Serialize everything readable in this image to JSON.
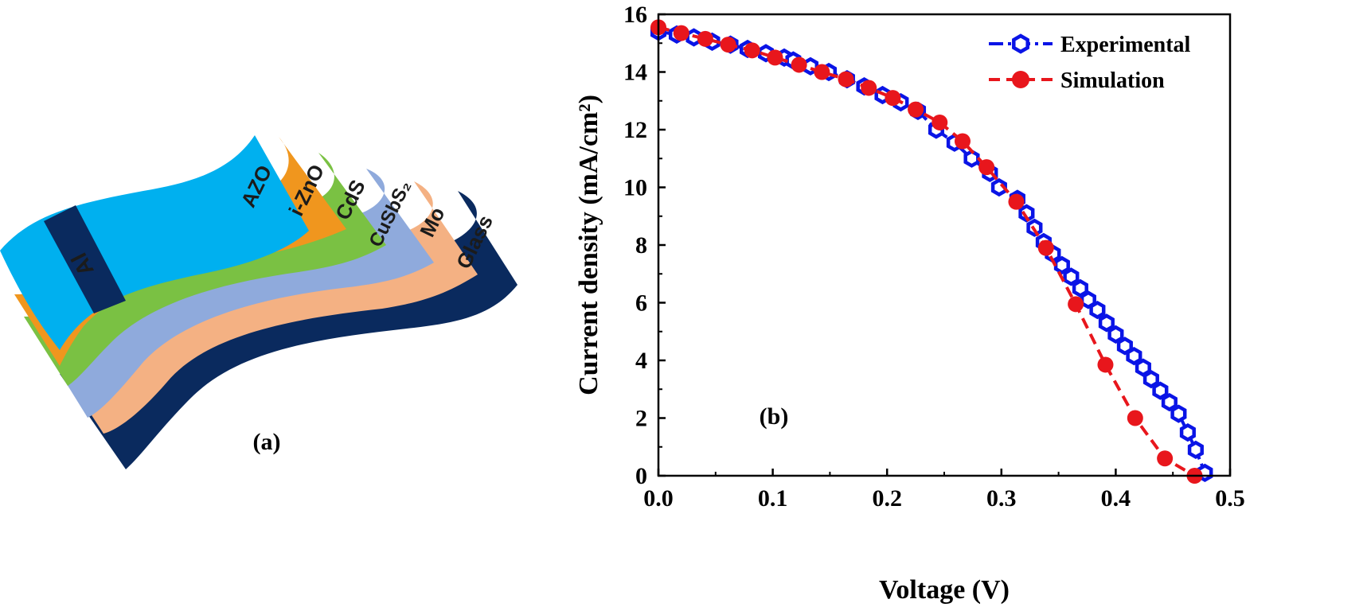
{
  "panel_a": {
    "label": "(a)",
    "layers": [
      {
        "name": "Glass",
        "color": "#0a2a5e",
        "text_color": "#ffffff"
      },
      {
        "name": "Mo",
        "color": "#f4b183",
        "text_color": "#1b1b1b"
      },
      {
        "name": "CuSbS₂",
        "color": "#8faadc",
        "text_color": "#1b1b1b"
      },
      {
        "name": "CdS",
        "color": "#7ac143",
        "text_color": "#1b1b1b"
      },
      {
        "name": "i-ZnO",
        "color": "#f0961e",
        "text_color": "#1b1b1b"
      },
      {
        "name": "AZO",
        "color": "#00b0ef",
        "text_color": "#1b1b1b"
      }
    ],
    "contact": {
      "name": "Al",
      "color": "#0a2a5e",
      "text_color": "#ffffff"
    }
  },
  "chart_data": {
    "type": "line",
    "panel_label": "(b)",
    "xlabel": "Voltage (V)",
    "ylabel": "Current density (mA/cm²)",
    "xlim": [
      0,
      0.5
    ],
    "ylim": [
      0,
      16
    ],
    "x_ticks": [
      "0.0",
      "0.1",
      "0.2",
      "0.3",
      "0.4",
      "0.5"
    ],
    "y_ticks": [
      "0",
      "2",
      "4",
      "6",
      "8",
      "10",
      "12",
      "14",
      "16"
    ],
    "legend_position": "top-right",
    "grid": false,
    "series": [
      {
        "name": "Experimental",
        "color": "#0a14e6",
        "marker": "hollow-hexagon",
        "line": "dash-dot",
        "x": [
          0.0,
          0.016,
          0.031,
          0.047,
          0.063,
          0.078,
          0.094,
          0.11,
          0.118,
          0.133,
          0.149,
          0.165,
          0.18,
          0.196,
          0.212,
          0.227,
          0.243,
          0.259,
          0.274,
          0.29,
          0.298,
          0.314,
          0.322,
          0.329,
          0.337,
          0.345,
          0.353,
          0.361,
          0.369,
          0.376,
          0.384,
          0.392,
          0.4,
          0.408,
          0.416,
          0.424,
          0.431,
          0.439,
          0.447,
          0.455,
          0.463,
          0.47,
          0.478
        ],
        "y": [
          15.4,
          15.3,
          15.2,
          15.05,
          14.95,
          14.8,
          14.65,
          14.5,
          14.4,
          14.2,
          14.0,
          13.75,
          13.5,
          13.2,
          12.95,
          12.65,
          12.0,
          11.55,
          11.0,
          10.5,
          10.0,
          9.6,
          9.1,
          8.6,
          8.1,
          7.7,
          7.3,
          6.9,
          6.5,
          6.1,
          5.75,
          5.3,
          4.9,
          4.5,
          4.15,
          3.75,
          3.35,
          2.95,
          2.55,
          2.15,
          1.5,
          0.9,
          0.1
        ]
      },
      {
        "name": "Simulation",
        "color": "#e8161c",
        "marker": "filled-circle",
        "line": "dashed",
        "x": [
          0.0,
          0.02,
          0.041,
          0.061,
          0.082,
          0.102,
          0.123,
          0.143,
          0.164,
          0.184,
          0.205,
          0.225,
          0.246,
          0.266,
          0.287,
          0.313,
          0.339,
          0.365,
          0.391,
          0.417,
          0.443,
          0.469
        ],
        "y": [
          15.55,
          15.35,
          15.15,
          14.95,
          14.75,
          14.5,
          14.25,
          14.0,
          13.75,
          13.45,
          13.1,
          12.7,
          12.25,
          11.6,
          10.7,
          9.5,
          7.9,
          5.95,
          3.85,
          2.0,
          0.6,
          0.0
        ]
      }
    ]
  }
}
